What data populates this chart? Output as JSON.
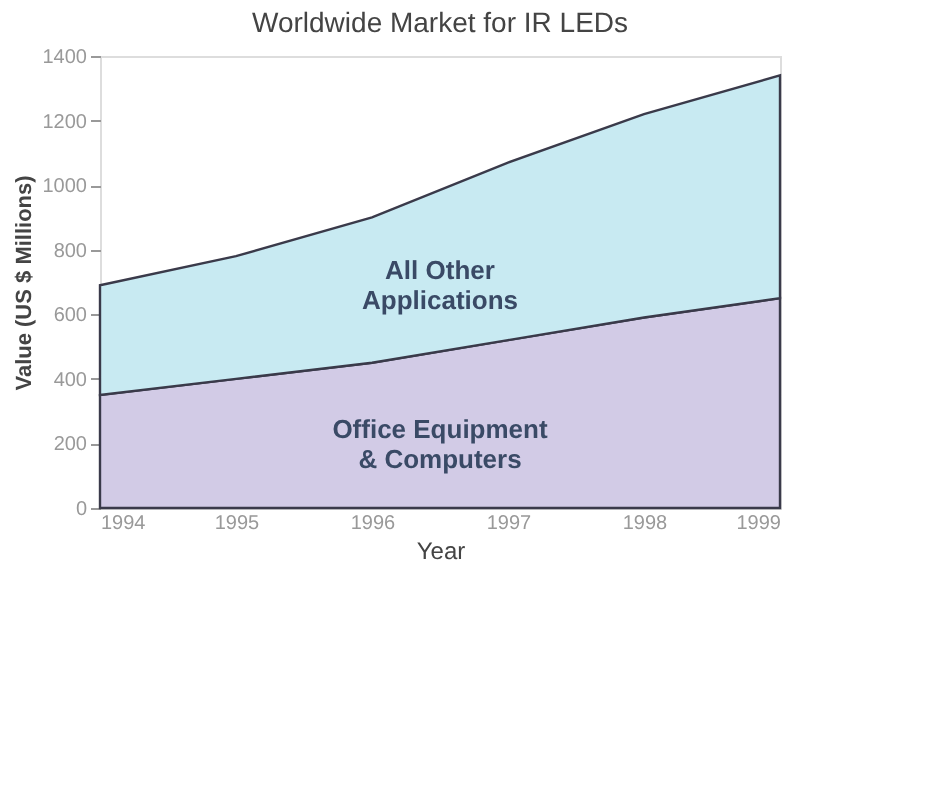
{
  "chart_data": {
    "type": "area",
    "stacked": true,
    "title": "Worldwide Market for IR LEDs",
    "xlabel": "Year",
    "ylabel": "Value (US $ Millions)",
    "x": [
      1994,
      1995,
      1996,
      1997,
      1998,
      1999
    ],
    "series": [
      {
        "name": "Office Equipment & Computers",
        "color": "#d2cbe6",
        "values": [
          350,
          400,
          450,
          520,
          590,
          650
        ]
      },
      {
        "name": "All Other Applications",
        "color": "#c8eaf2",
        "values": [
          340,
          380,
          450,
          550,
          630,
          690
        ]
      }
    ],
    "xlim": [
      1994,
      1999
    ],
    "xticks": [
      1994,
      1995,
      1996,
      1997,
      1998,
      1999
    ],
    "ylim": [
      0,
      1400
    ],
    "yticks": [
      0,
      200,
      400,
      600,
      800,
      1000,
      1200,
      1400
    ],
    "grid": false
  }
}
